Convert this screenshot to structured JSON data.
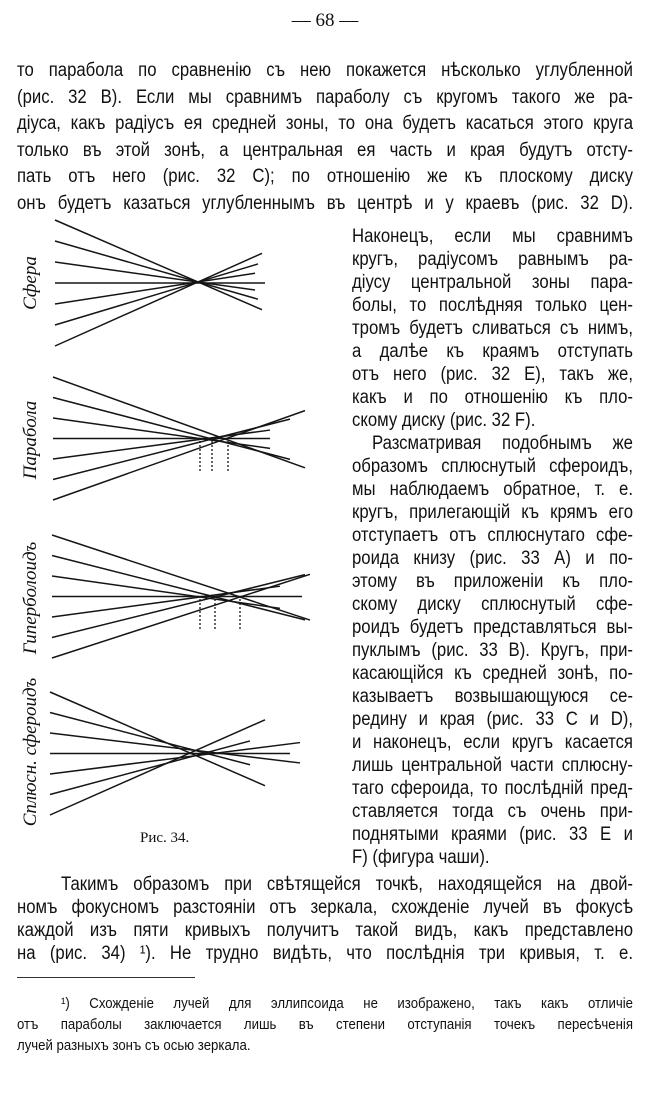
{
  "page_number": "— 68 —",
  "main_lines": [
    "то парабола по сравненію съ нею покажется нѣсколько углубленной",
    "(рис. 32 B). Если мы сравнимъ параболу съ кругомъ такого же ра-",
    "діуса, какъ радіусъ ея средней зоны, то она будетъ касаться этого круга",
    "только въ этой зонѣ, а центральная ея часть и края будутъ отсту-",
    "пать отъ него (рис. 32 C); по отношенію же къ плоскому диску",
    "онъ будетъ казаться углубленнымъ въ центрѣ и у краевъ (рис. 32 D)."
  ],
  "column_lines": [
    "Наконецъ, если мы сравнимъ",
    "кругъ, радіусомъ равнымъ ра-",
    "діусу центральной зоны пара-",
    "болы, то послѣдняя только цен-",
    "тромъ будетъ сливаться съ нимъ,",
    "а далѣе къ краямъ отступать",
    "отъ него (рис. 32 E), такъ же,",
    "какъ и по отношенію къ пло-",
    "скому диску (рис. 32 F).",
    "Разсматривая подобнымъ же",
    "образомъ сплюснутый сфероидъ,",
    "мы наблюдаемъ обратное, т. е.",
    "кругъ, прилегающій къ крямъ его",
    "отступаетъ отъ сплюснутаго сфе-",
    "роида книзу (рис. 33 A) и по-",
    "этому въ приложеніи къ пло-",
    "скому диску сплюснутый сфе-",
    "роидъ будетъ представляться вы-",
    "пуклымъ (рис. 33 B). Кругъ, при-",
    "касающійся къ средней зонѣ, по-",
    "казываетъ возвышающуюся се-",
    "редину и края (рис. 33 C и D),",
    "и наконецъ, если кругъ касается",
    "лишь центральной части сплюсну-",
    "таго сфероида, то послѣдній пред-",
    "ставляется тогда съ очень при-",
    "поднятыми краями (рис. 33 E и",
    "F) (фигура чаши)."
  ],
  "bottom_lines": [
    "Такимъ образомъ при свѣтящейся точкѣ, находящейся на двой-",
    "номъ фокусномъ разстояніи отъ зеркала, схожденіе лучей въ фокусѣ",
    "каждой изъ пяти кривыхъ получитъ такой видъ, какъ представлено",
    "на (рис. 34) ¹). Не трудно видѣть, что послѣднія три кривыя, т. е."
  ],
  "footnote_lines": [
    "¹) Схожденіе лучей для эллипсоида не изображено, такъ какъ отличіе",
    "отъ параболы заключается лишь въ степени отступанія точекъ пересѣченія",
    "лучей разныхъ зонъ съ осью зеркала."
  ],
  "figure": {
    "caption": "Рис. 34.",
    "labels": [
      "Сфера",
      "Парабола",
      "Гиперболоидъ",
      "Сплюсн. сфероидъ"
    ]
  }
}
